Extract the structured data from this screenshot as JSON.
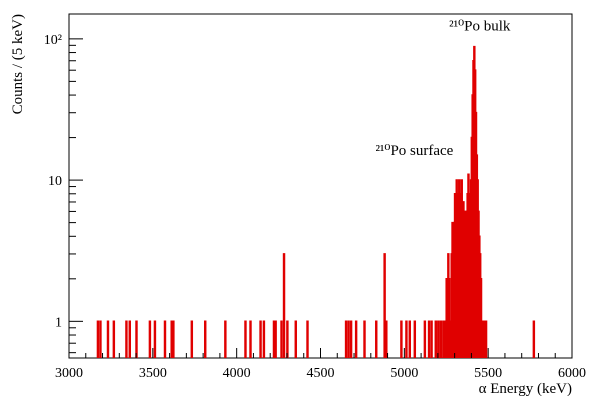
{
  "chart_data": {
    "type": "histogram",
    "title": "",
    "xlabel": "α Energy (keV)",
    "ylabel": "Counts / (5 keV)",
    "xlim": [
      3000,
      6000
    ],
    "ylim": [
      0.55,
      150
    ],
    "yscale": "log",
    "bin_width_keV": 5,
    "x_ticks": [
      3000,
      3500,
      4000,
      4500,
      5000,
      5500,
      6000
    ],
    "x_tick_labels": [
      "3000",
      "3500",
      "4000",
      "4500",
      "5000",
      "5500",
      "6000"
    ],
    "y_ticks": [
      1,
      10,
      100
    ],
    "y_tick_labels": [
      "1",
      "10",
      "10²"
    ],
    "line_color": "#e00000",
    "grid": false,
    "annotations": [
      {
        "text": "²¹⁰Po surface",
        "x": 5060,
        "y": 15
      },
      {
        "text": "²¹⁰Po bulk",
        "x": 5450,
        "y": 115
      }
    ],
    "bins": [
      [
        3170,
        1
      ],
      [
        3185,
        1
      ],
      [
        3230,
        1
      ],
      [
        3265,
        1
      ],
      [
        3340,
        1
      ],
      [
        3360,
        1
      ],
      [
        3400,
        1
      ],
      [
        3480,
        1
      ],
      [
        3510,
        1
      ],
      [
        3570,
        1
      ],
      [
        3610,
        1
      ],
      [
        3620,
        1
      ],
      [
        3730,
        1
      ],
      [
        3810,
        1
      ],
      [
        3930,
        1
      ],
      [
        4050,
        1
      ],
      [
        4080,
        1
      ],
      [
        4140,
        1
      ],
      [
        4160,
        1
      ],
      [
        4220,
        1
      ],
      [
        4230,
        1
      ],
      [
        4265,
        1
      ],
      [
        4280,
        3
      ],
      [
        4300,
        1
      ],
      [
        4350,
        1
      ],
      [
        4420,
        1
      ],
      [
        4650,
        1
      ],
      [
        4665,
        1
      ],
      [
        4680,
        1
      ],
      [
        4710,
        1
      ],
      [
        4760,
        1
      ],
      [
        4830,
        1
      ],
      [
        4880,
        3
      ],
      [
        4890,
        1
      ],
      [
        4980,
        1
      ],
      [
        5010,
        1
      ],
      [
        5030,
        1
      ],
      [
        5060,
        1
      ],
      [
        5120,
        1
      ],
      [
        5145,
        1
      ],
      [
        5160,
        1
      ],
      [
        5185,
        1
      ],
      [
        5200,
        1
      ],
      [
        5215,
        1
      ],
      [
        5230,
        1
      ],
      [
        5240,
        1
      ],
      [
        5250,
        2
      ],
      [
        5260,
        3
      ],
      [
        5265,
        2
      ],
      [
        5275,
        1
      ],
      [
        5280,
        3
      ],
      [
        5285,
        5
      ],
      [
        5290,
        4
      ],
      [
        5295,
        5
      ],
      [
        5300,
        8
      ],
      [
        5305,
        6
      ],
      [
        5310,
        10
      ],
      [
        5315,
        6
      ],
      [
        5320,
        8
      ],
      [
        5325,
        10
      ],
      [
        5330,
        8
      ],
      [
        5335,
        6
      ],
      [
        5340,
        10
      ],
      [
        5345,
        5
      ],
      [
        5350,
        7
      ],
      [
        5355,
        3
      ],
      [
        5360,
        6
      ],
      [
        5365,
        5
      ],
      [
        5370,
        6
      ],
      [
        5375,
        8
      ],
      [
        5380,
        11
      ],
      [
        5385,
        8
      ],
      [
        5390,
        6
      ],
      [
        5395,
        10
      ],
      [
        5400,
        20
      ],
      [
        5405,
        40
      ],
      [
        5410,
        70
      ],
      [
        5415,
        88
      ],
      [
        5420,
        60
      ],
      [
        5425,
        30
      ],
      [
        5430,
        15
      ],
      [
        5435,
        10
      ],
      [
        5440,
        6
      ],
      [
        5445,
        4
      ],
      [
        5450,
        3
      ],
      [
        5455,
        2
      ],
      [
        5460,
        1
      ],
      [
        5465,
        1
      ],
      [
        5470,
        1
      ],
      [
        5475,
        1
      ],
      [
        5480,
        1
      ],
      [
        5485,
        1
      ],
      [
        5770,
        1
      ]
    ]
  }
}
